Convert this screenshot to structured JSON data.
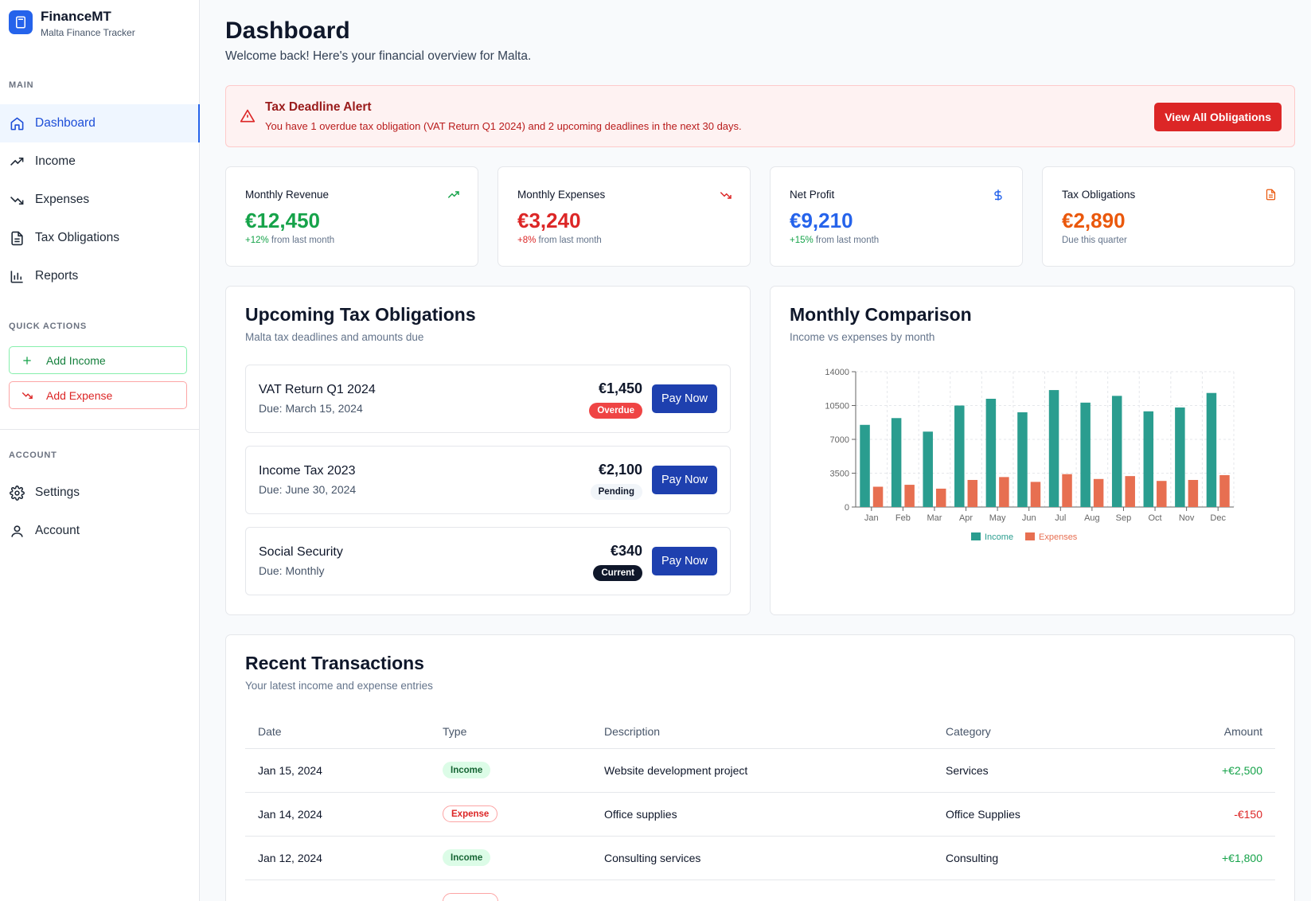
{
  "brand": {
    "name": "FinanceMT",
    "subtitle": "Malta Finance Tracker"
  },
  "sidebar": {
    "main_label": "MAIN",
    "main_items": [
      {
        "label": "Dashboard",
        "icon": "home-icon"
      },
      {
        "label": "Income",
        "icon": "trending-up-icon"
      },
      {
        "label": "Expenses",
        "icon": "trending-down-icon"
      },
      {
        "label": "Tax Obligations",
        "icon": "document-icon"
      },
      {
        "label": "Reports",
        "icon": "bar-chart-icon"
      }
    ],
    "quick_label": "QUICK ACTIONS",
    "quick_actions": [
      {
        "label": "Add Income",
        "icon": "plus-icon"
      },
      {
        "label": "Add Expense",
        "icon": "trending-down-icon"
      }
    ],
    "account_label": "ACCOUNT",
    "account_items": [
      {
        "label": "Settings",
        "icon": "gear-icon"
      },
      {
        "label": "Account",
        "icon": "user-icon"
      }
    ]
  },
  "header": {
    "title": "Dashboard",
    "subtitle": "Welcome back! Here's your financial overview for Malta."
  },
  "alert": {
    "title": "Tax Deadline Alert",
    "text": "You have 1 overdue tax obligation (VAT Return Q1 2024) and 2 upcoming deadlines in the next 30 days.",
    "button": "View All Obligations"
  },
  "stats": [
    {
      "label": "Monthly Revenue",
      "value": "€12,450",
      "change": "+12%",
      "note": " from last month",
      "color": "#16a34a",
      "icon": "trending-up-icon"
    },
    {
      "label": "Monthly Expenses",
      "value": "€3,240",
      "change": "+8%",
      "note": " from last month",
      "color": "#dc2626",
      "icon": "trending-down-icon"
    },
    {
      "label": "Net Profit",
      "value": "€9,210",
      "change": "+15%",
      "note": " from last month",
      "color": "#2563eb",
      "icon": "dollar-icon"
    },
    {
      "label": "Tax Obligations",
      "value": "€2,890",
      "change": "",
      "note": "Due this quarter",
      "color": "#ea580c",
      "icon": "document-icon"
    }
  ],
  "obligations": {
    "title": "Upcoming Tax Obligations",
    "subtitle": "Malta tax deadlines and amounts due",
    "pay_label": "Pay Now",
    "items": [
      {
        "name": "VAT Return Q1 2024",
        "due": "Due: March 15, 2024",
        "amount": "€1,450",
        "status": "Overdue"
      },
      {
        "name": "Income Tax 2023",
        "due": "Due: June 30, 2024",
        "amount": "€2,100",
        "status": "Pending"
      },
      {
        "name": "Social Security",
        "due": "Due: Monthly",
        "amount": "€340",
        "status": "Current"
      }
    ]
  },
  "comparison": {
    "title": "Monthly Comparison",
    "subtitle": "Income vs expenses by month"
  },
  "chart_data": {
    "type": "bar",
    "categories": [
      "Jan",
      "Feb",
      "Mar",
      "Apr",
      "May",
      "Jun",
      "Jul",
      "Aug",
      "Sep",
      "Oct",
      "Nov",
      "Dec"
    ],
    "series": [
      {
        "name": "Income",
        "color": "#2a9d8f",
        "values": [
          8500,
          9200,
          7800,
          10500,
          11200,
          9800,
          12100,
          10800,
          11500,
          9900,
          10300,
          11800
        ]
      },
      {
        "name": "Expenses",
        "color": "#e76f51",
        "values": [
          2100,
          2300,
          1900,
          2800,
          3100,
          2600,
          3400,
          2900,
          3200,
          2700,
          2800,
          3300
        ]
      }
    ],
    "yticks": [
      0,
      3500,
      7000,
      10500,
      14000
    ],
    "ylim": [
      0,
      14000
    ],
    "grid": true,
    "legend": "bottom"
  },
  "transactions": {
    "title": "Recent Transactions",
    "subtitle": "Your latest income and expense entries",
    "columns": [
      "Date",
      "Type",
      "Description",
      "Category",
      "Amount"
    ],
    "rows": [
      {
        "date": "Jan 15, 2024",
        "type": "Income",
        "description": "Website development project",
        "category": "Services",
        "amount": "+€2,500"
      },
      {
        "date": "Jan 14, 2024",
        "type": "Expense",
        "description": "Office supplies",
        "category": "Office Supplies",
        "amount": "-€150"
      },
      {
        "date": "Jan 12, 2024",
        "type": "Income",
        "description": "Consulting services",
        "category": "Consulting",
        "amount": "+€1,800"
      }
    ]
  }
}
